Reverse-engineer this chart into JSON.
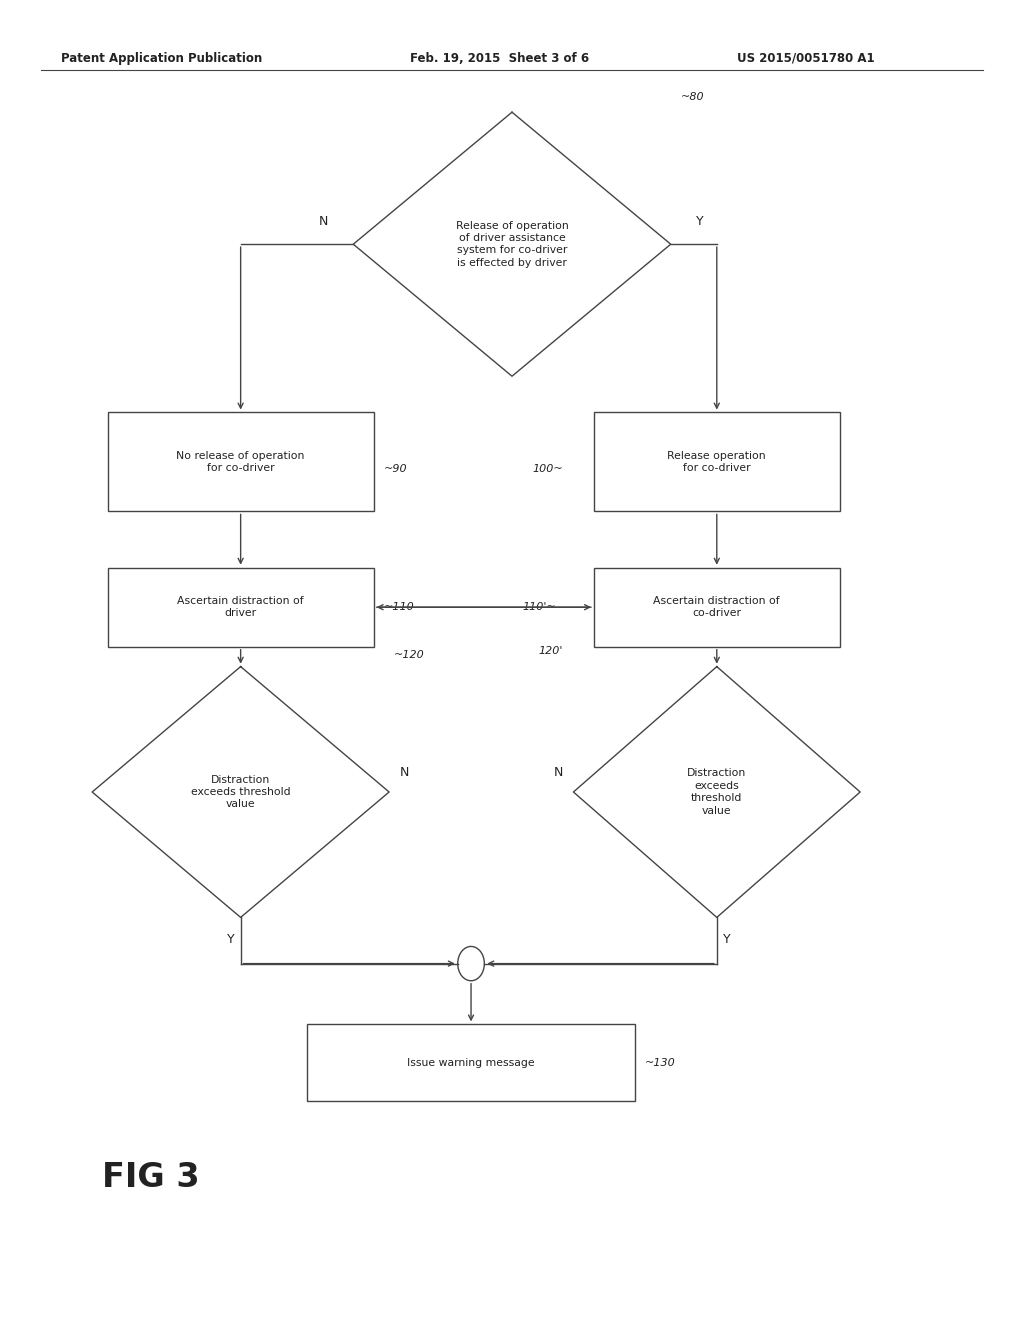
{
  "bg_color": "#ffffff",
  "line_color": "#444444",
  "text_color": "#222222",
  "header_left": "Patent Application Publication",
  "header_mid": "Feb. 19, 2015  Sheet 3 of 6",
  "header_right": "US 2015/0051780 A1",
  "fig_label": "FIG 3",
  "figsize": [
    10.24,
    13.2
  ],
  "dpi": 100
}
